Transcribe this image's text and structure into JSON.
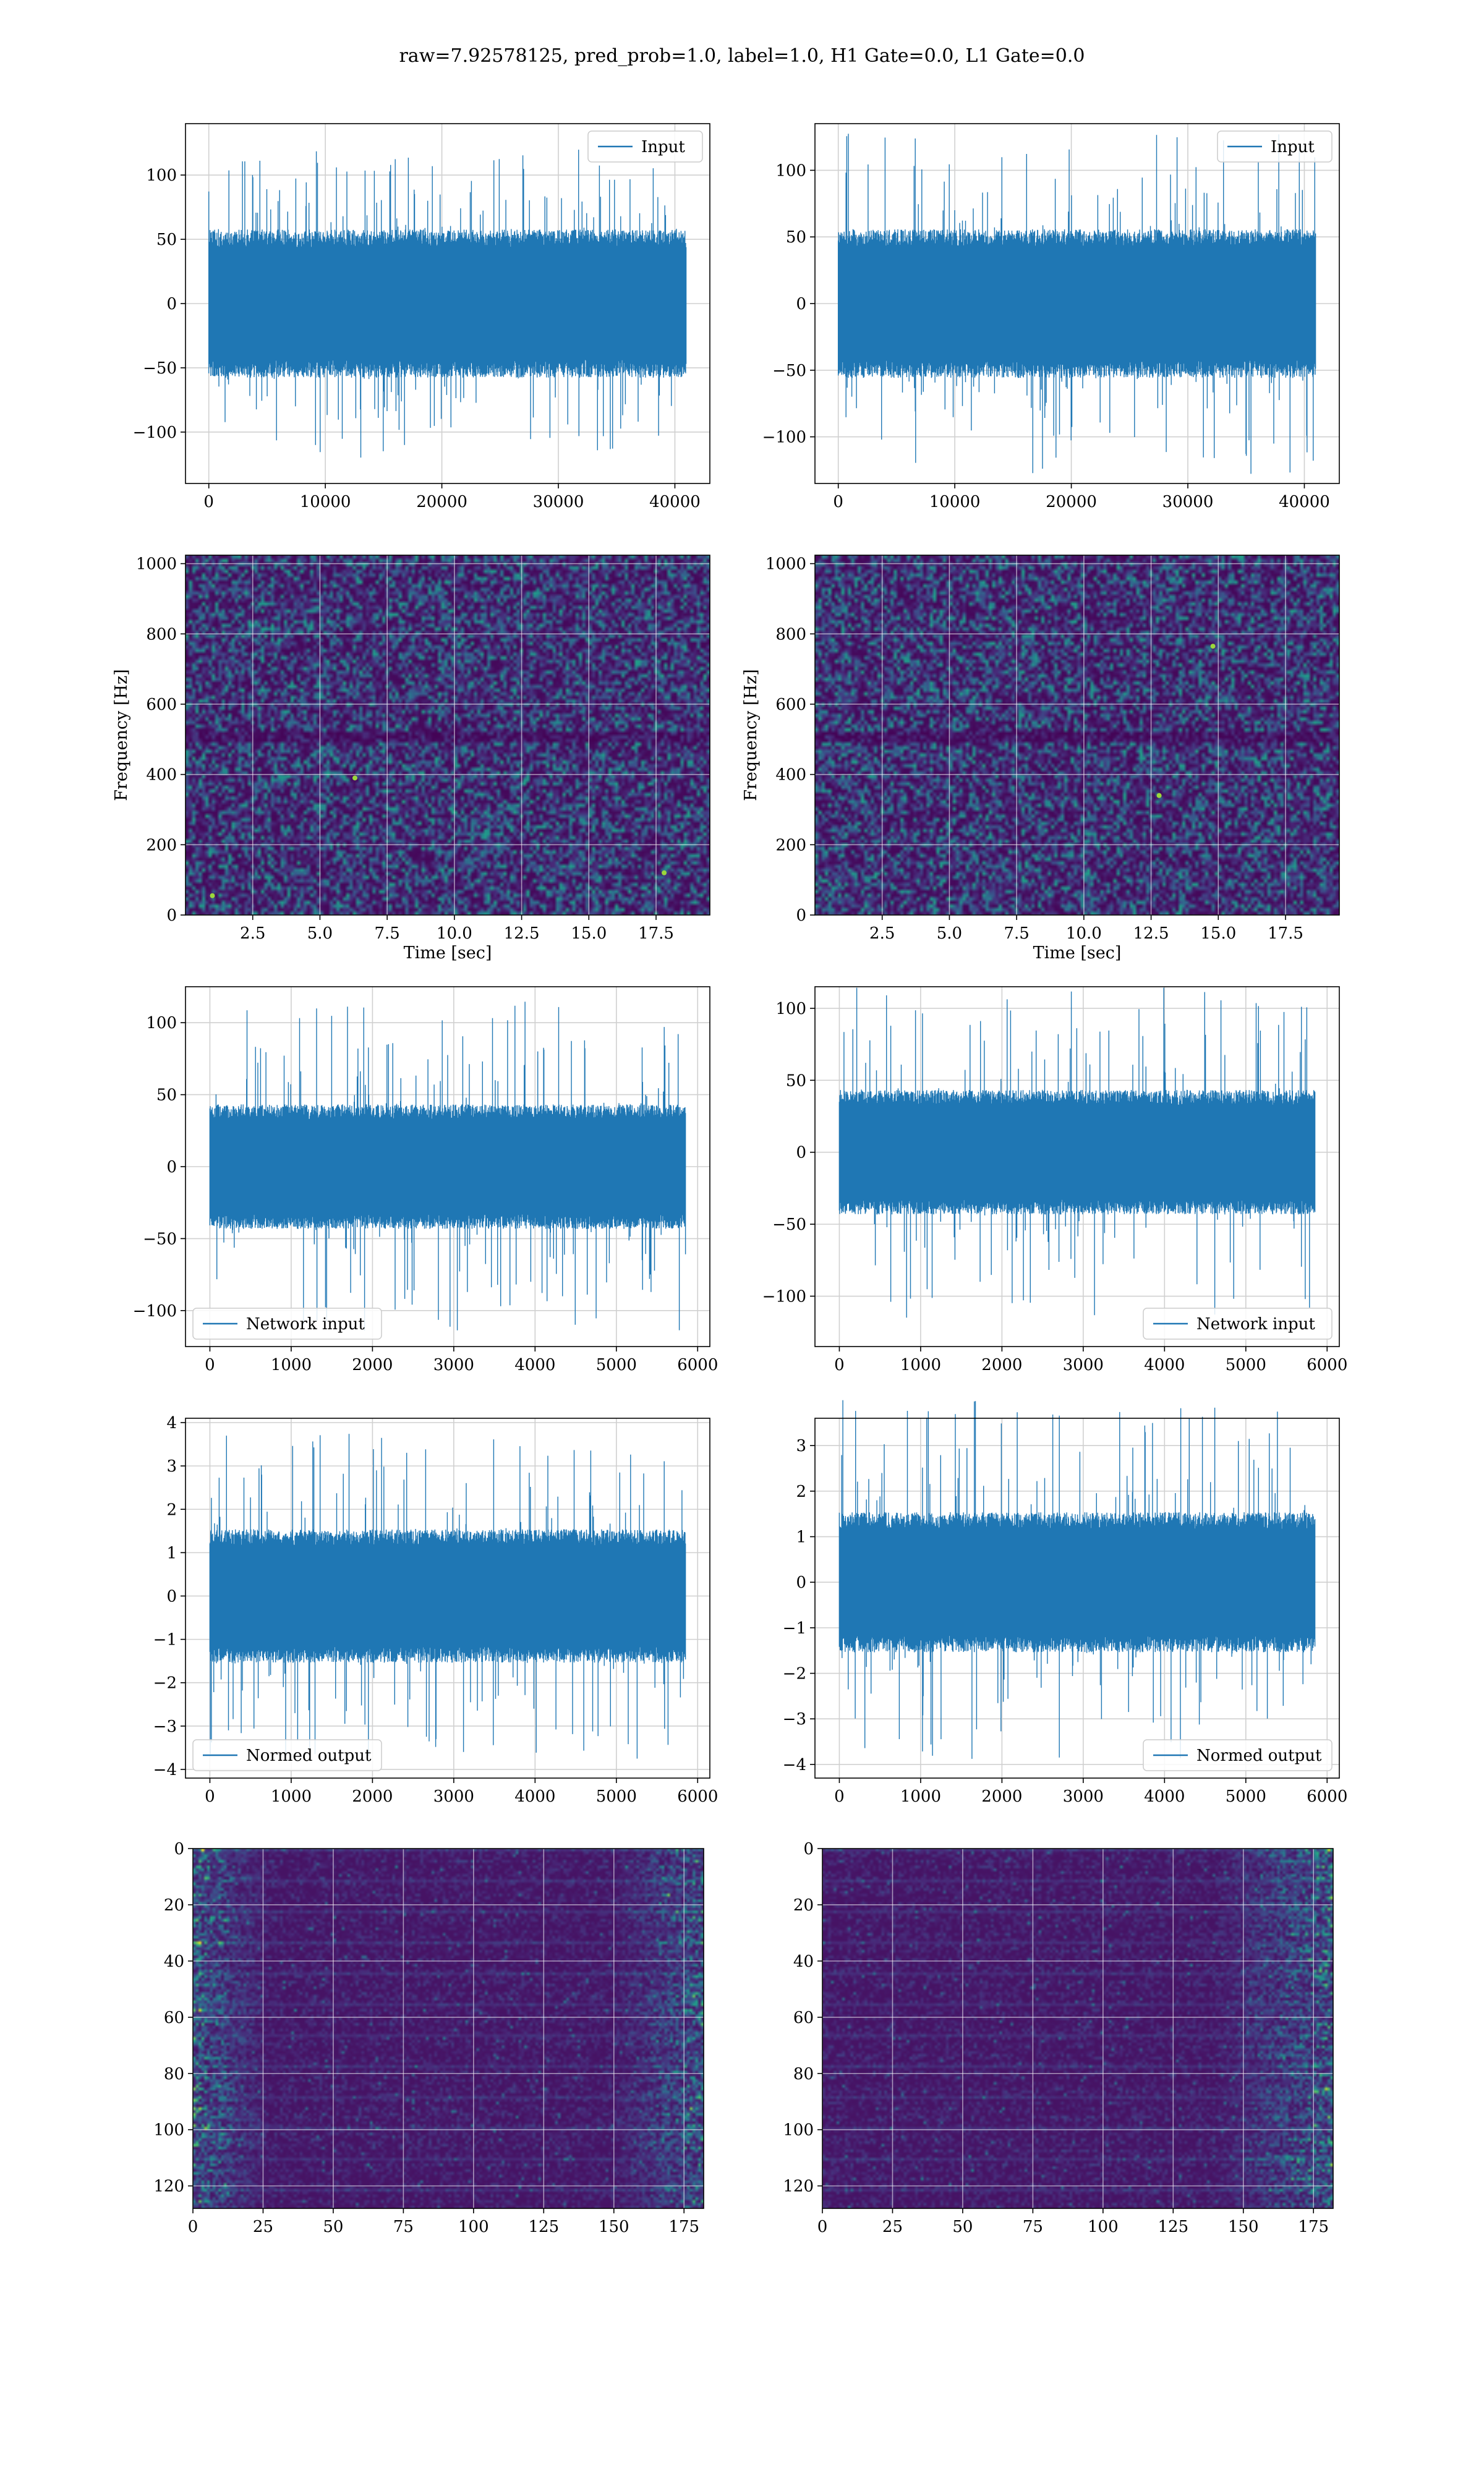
{
  "figure": {
    "suptitle": "raw=7.92578125, pred_prob=1.0, label=1.0, H1 Gate=0.0, L1 Gate=0.0"
  },
  "colors": {
    "line": "#1f77b4",
    "grid": "#d0d0d0",
    "viridis": [
      "#440154",
      "#3b528b",
      "#21908d",
      "#5dc963",
      "#fde725"
    ]
  },
  "chart_data": [
    {
      "id": "input-h1",
      "type": "line",
      "detector_column": "left",
      "legend": "Input",
      "legend_loc": "upper right",
      "xlim": [
        -2000,
        43000
      ],
      "ylim": [
        -140,
        140
      ],
      "xticks": [
        0,
        10000,
        20000,
        30000,
        40000
      ],
      "yticks": [
        -100,
        -50,
        0,
        50,
        100
      ],
      "series": [
        {
          "x_range": [
            0,
            40960
          ],
          "mean": 0,
          "band_abs": 60,
          "peak_abs": 120
        }
      ]
    },
    {
      "id": "input-l1",
      "type": "line",
      "detector_column": "right",
      "legend": "Input",
      "legend_loc": "upper right",
      "xlim": [
        -2000,
        43000
      ],
      "ylim": [
        -135,
        135
      ],
      "xticks": [
        0,
        10000,
        20000,
        30000,
        40000
      ],
      "yticks": [
        -100,
        -50,
        0,
        50,
        100
      ],
      "series": [
        {
          "x_range": [
            0,
            40960
          ],
          "mean": 0,
          "band_abs": 58,
          "peak_abs": 128
        }
      ]
    },
    {
      "id": "spectrogram-h1",
      "type": "heatmap",
      "detector_column": "left",
      "xlabel": "Time [sec]",
      "ylabel": "Frequency [Hz]",
      "xlim": [
        0,
        19.5
      ],
      "ylim": [
        0,
        1024
      ],
      "xticks": [
        "2.5",
        "5.0",
        "7.5",
        "10.0",
        "12.5",
        "15.0",
        "17.5"
      ],
      "yticks": [
        0,
        200,
        400,
        600,
        800,
        1000
      ],
      "features": [
        {
          "kind": "dark-band",
          "freq": 510
        },
        {
          "kind": "bright-spot",
          "t": 1.0,
          "f": 55
        },
        {
          "kind": "bright-spot",
          "t": 17.8,
          "f": 120
        },
        {
          "kind": "bright-spot",
          "t": 6.3,
          "f": 390
        }
      ]
    },
    {
      "id": "spectrogram-l1",
      "type": "heatmap",
      "detector_column": "right",
      "xlabel": "Time [sec]",
      "ylabel": "Frequency [Hz]",
      "xlim": [
        0,
        19.5
      ],
      "ylim": [
        0,
        1024
      ],
      "xticks": [
        "2.5",
        "5.0",
        "7.5",
        "10.0",
        "12.5",
        "15.0",
        "17.5"
      ],
      "yticks": [
        0,
        200,
        400,
        600,
        800,
        1000
      ],
      "features": [
        {
          "kind": "dark-band",
          "freq": 510
        },
        {
          "kind": "bright-spot",
          "t": 14.8,
          "f": 765
        },
        {
          "kind": "bright-spot",
          "t": 12.8,
          "f": 340
        }
      ]
    },
    {
      "id": "network-input-h1",
      "type": "line",
      "detector_column": "left",
      "legend": "Network input",
      "legend_loc": "lower left",
      "xlim": [
        -300,
        6150
      ],
      "ylim": [
        -125,
        125
      ],
      "xticks": [
        0,
        1000,
        2000,
        3000,
        4000,
        5000,
        6000
      ],
      "yticks": [
        -100,
        -50,
        0,
        50,
        100
      ],
      "series": [
        {
          "x_range": [
            0,
            5850
          ],
          "mean": 0,
          "band_abs": 45,
          "peak_abs": 115
        }
      ]
    },
    {
      "id": "network-input-l1",
      "type": "line",
      "detector_column": "right",
      "legend": "Network input",
      "legend_loc": "lower right",
      "xlim": [
        -300,
        6150
      ],
      "ylim": [
        -135,
        115
      ],
      "xticks": [
        0,
        1000,
        2000,
        3000,
        4000,
        5000,
        6000
      ],
      "yticks": [
        -100,
        -50,
        0,
        50,
        100
      ],
      "series": [
        {
          "x_range": [
            0,
            5850
          ],
          "mean": 0,
          "band_abs": 45,
          "peak_abs": 115
        }
      ]
    },
    {
      "id": "normed-output-h1",
      "type": "line",
      "detector_column": "left",
      "legend": "Normed output",
      "legend_loc": "lower left",
      "xlim": [
        -300,
        6150
      ],
      "ylim": [
        -4.2,
        4.1
      ],
      "xticks": [
        0,
        1000,
        2000,
        3000,
        4000,
        5000,
        6000
      ],
      "yticks": [
        -4,
        -3,
        -2,
        -1,
        0,
        1,
        2,
        3,
        4
      ],
      "series": [
        {
          "x_range": [
            0,
            5850
          ],
          "mean": 0,
          "band_abs": 1.6,
          "peak_abs": 3.8
        }
      ]
    },
    {
      "id": "normed-output-l1",
      "type": "line",
      "detector_column": "right",
      "legend": "Normed output",
      "legend_loc": "lower right",
      "xlim": [
        -300,
        6150
      ],
      "ylim": [
        -4.3,
        3.6
      ],
      "xticks": [
        0,
        1000,
        2000,
        3000,
        4000,
        5000,
        6000
      ],
      "yticks": [
        -4,
        -3,
        -2,
        -1,
        0,
        1,
        2,
        3
      ],
      "series": [
        {
          "x_range": [
            0,
            5850
          ],
          "mean": 0,
          "band_abs": 1.6,
          "peak_abs": 4.0
        }
      ]
    },
    {
      "id": "features-h1",
      "type": "heatmap",
      "detector_column": "left",
      "xlim": [
        0,
        182
      ],
      "ylim": [
        128,
        0
      ],
      "xticks": [
        0,
        25,
        50,
        75,
        100,
        125,
        150,
        175
      ],
      "yticks": [
        0,
        20,
        40,
        60,
        80,
        100,
        120
      ],
      "rows": 128,
      "cols": 182,
      "features": [
        {
          "kind": "bright-edge",
          "cols": [
            0,
            25
          ]
        },
        {
          "kind": "bright-edge",
          "cols": [
            150,
            182
          ]
        }
      ]
    },
    {
      "id": "features-l1",
      "type": "heatmap",
      "detector_column": "right",
      "xlim": [
        0,
        182
      ],
      "ylim": [
        128,
        0
      ],
      "xticks": [
        0,
        25,
        50,
        75,
        100,
        125,
        150,
        175
      ],
      "yticks": [
        0,
        20,
        40,
        60,
        80,
        100,
        120
      ],
      "rows": 128,
      "cols": 182,
      "features": [
        {
          "kind": "bright-edge",
          "cols": [
            140,
            182
          ]
        }
      ]
    }
  ]
}
